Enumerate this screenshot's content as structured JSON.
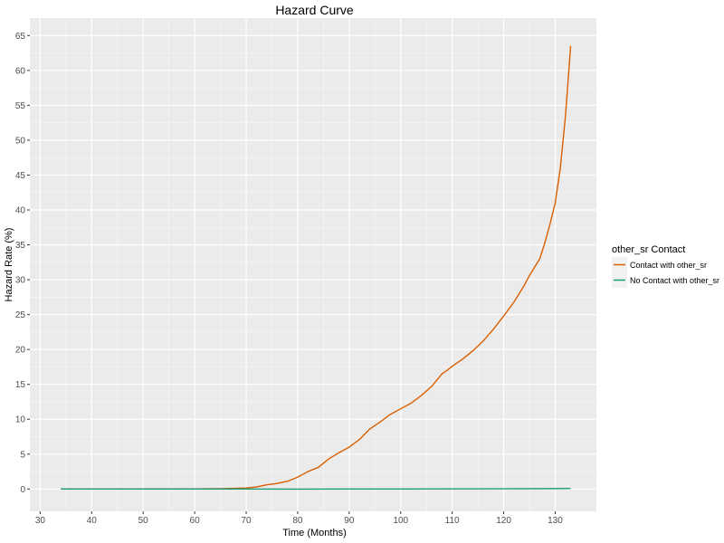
{
  "chart_data": {
    "type": "line",
    "title": "Hazard Curve",
    "xlabel": "Time (Months)",
    "ylabel": "Hazard Rate (%)",
    "xlim": [
      28,
      138
    ],
    "ylim": [
      -3.2,
      67.5
    ],
    "xticks": [
      30,
      40,
      50,
      60,
      70,
      80,
      90,
      100,
      110,
      120,
      130
    ],
    "yticks": [
      0,
      5,
      10,
      15,
      20,
      25,
      30,
      35,
      40,
      45,
      50,
      55,
      60,
      65
    ],
    "grid": true,
    "legend": {
      "title": "other_sr Contact",
      "position": "right"
    },
    "series": [
      {
        "name": "Contact with other_sr",
        "color": "#d95f02",
        "points": [
          [
            34,
            0
          ],
          [
            50,
            0
          ],
          [
            60,
            0.02
          ],
          [
            65,
            0.05
          ],
          [
            68,
            0.1
          ],
          [
            70,
            0.15
          ],
          [
            72,
            0.3
          ],
          [
            74,
            0.6
          ],
          [
            76,
            0.8
          ],
          [
            78,
            1.1
          ],
          [
            80,
            1.7
          ],
          [
            82,
            2.5
          ],
          [
            84,
            3.1
          ],
          [
            86,
            4.3
          ],
          [
            88,
            5.2
          ],
          [
            90,
            6.0
          ],
          [
            92,
            7.1
          ],
          [
            94,
            8.6
          ],
          [
            96,
            9.6
          ],
          [
            98,
            10.7
          ],
          [
            100,
            11.5
          ],
          [
            102,
            12.3
          ],
          [
            104,
            13.4
          ],
          [
            106,
            14.7
          ],
          [
            108,
            16.5
          ],
          [
            109,
            17.0
          ],
          [
            110,
            17.6
          ],
          [
            112,
            18.6
          ],
          [
            114,
            19.8
          ],
          [
            116,
            21.2
          ],
          [
            118,
            22.9
          ],
          [
            120,
            24.8
          ],
          [
            122,
            26.8
          ],
          [
            124,
            29.2
          ],
          [
            125,
            30.6
          ],
          [
            126,
            31.8
          ],
          [
            127,
            33.0
          ],
          [
            128,
            35.3
          ],
          [
            129,
            38.0
          ],
          [
            130,
            41.0
          ],
          [
            131,
            46.0
          ],
          [
            132,
            53.5
          ],
          [
            133,
            63.5
          ]
        ]
      },
      {
        "name": "No Contact with other_sr",
        "color": "#1b9e77",
        "points": [
          [
            34,
            0
          ],
          [
            50,
            0
          ],
          [
            70,
            0.0
          ],
          [
            80,
            -0.01
          ],
          [
            90,
            0.0
          ],
          [
            100,
            0.0
          ],
          [
            110,
            0.02
          ],
          [
            120,
            0.04
          ],
          [
            130,
            0.06
          ],
          [
            133,
            0.08
          ]
        ]
      }
    ]
  }
}
